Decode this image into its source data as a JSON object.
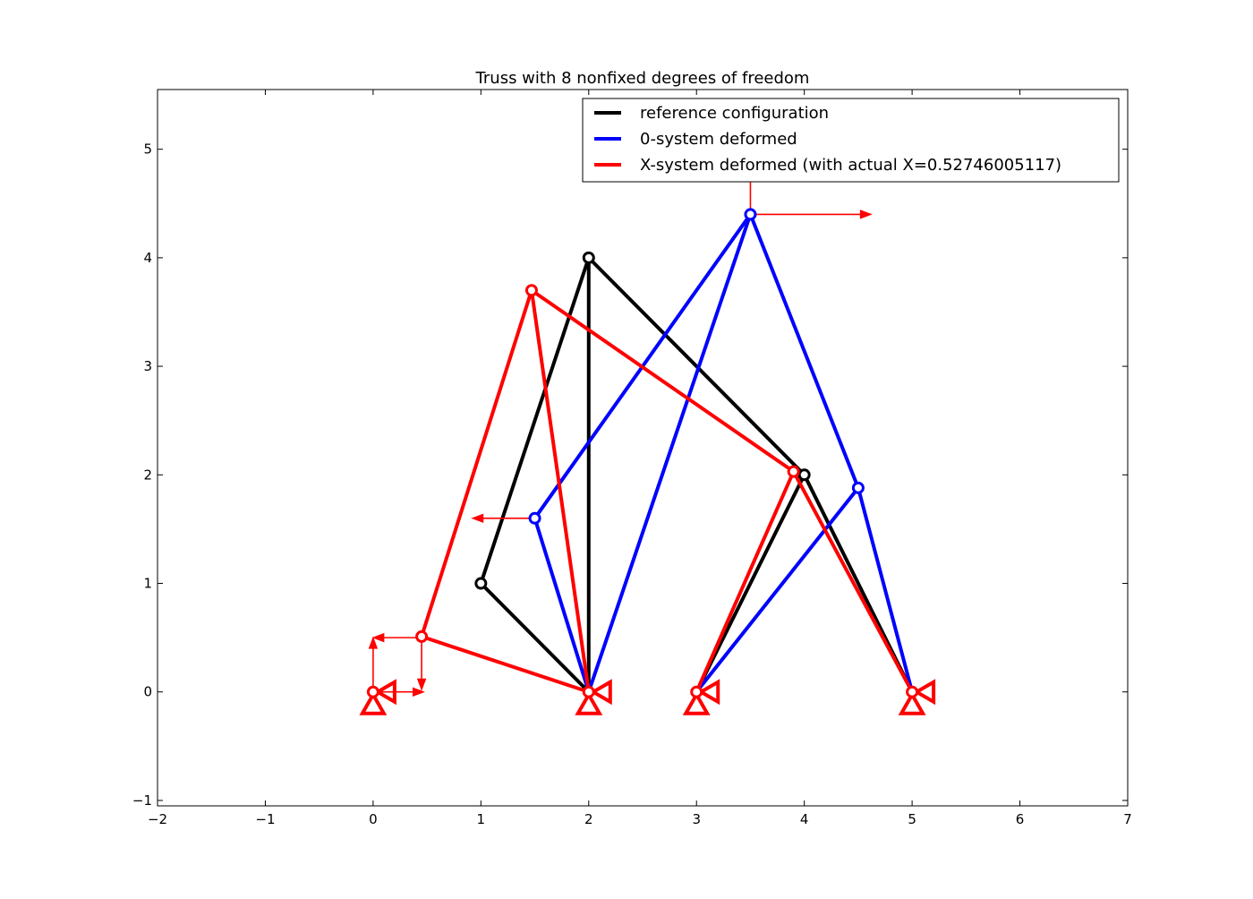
{
  "chart_data": {
    "type": "line",
    "title": "Truss with 8 nonfixed degrees of freedom",
    "xlabel": "",
    "ylabel": "",
    "xlim": [
      -2,
      7
    ],
    "ylim": [
      -1.05,
      5.55
    ],
    "xticks": [
      -2,
      -1,
      0,
      1,
      2,
      3,
      4,
      5,
      6,
      7
    ],
    "xtick_labels": [
      "−2",
      "−1",
      "0",
      "1",
      "2",
      "3",
      "4",
      "5",
      "6",
      "7"
    ],
    "yticks": [
      -1,
      0,
      1,
      2,
      3,
      4,
      5
    ],
    "ytick_labels": [
      "−1",
      "0",
      "1",
      "2",
      "3",
      "4",
      "5"
    ],
    "grid": false,
    "legend_position": "top-right",
    "series": [
      {
        "name": "reference configuration",
        "color": "#000000",
        "segments": [
          [
            [
              2,
              0
            ],
            [
              1,
              1
            ]
          ],
          [
            [
              1,
              1
            ],
            [
              2,
              4
            ]
          ],
          [
            [
              2,
              0
            ],
            [
              2,
              4
            ]
          ],
          [
            [
              2,
              4
            ],
            [
              4,
              2
            ]
          ],
          [
            [
              3,
              0
            ],
            [
              4,
              2
            ]
          ],
          [
            [
              4,
              2
            ],
            [
              5,
              0
            ]
          ]
        ],
        "nodes": [
          [
            1,
            1
          ],
          [
            2,
            4
          ],
          [
            4,
            2
          ]
        ]
      },
      {
        "name": "0-system deformed",
        "color": "#0000ff",
        "segments": [
          [
            [
              2,
              0
            ],
            [
              1.5,
              1.6
            ]
          ],
          [
            [
              1.5,
              1.6
            ],
            [
              3.5,
              4.4
            ]
          ],
          [
            [
              2,
              0
            ],
            [
              3.5,
              4.4
            ]
          ],
          [
            [
              3.5,
              4.4
            ],
            [
              4.5,
              1.88
            ]
          ],
          [
            [
              3,
              0
            ],
            [
              4.5,
              1.88
            ]
          ],
          [
            [
              4.5,
              1.88
            ],
            [
              5,
              0
            ]
          ]
        ],
        "nodes": [
          [
            1.5,
            1.6
          ],
          [
            3.5,
            4.4
          ],
          [
            4.5,
            1.88
          ]
        ]
      },
      {
        "name": "X-system deformed (with actual X=0.52746005117)",
        "color": "#ff0000",
        "segments": [
          [
            [
              0.45,
              0.51
            ],
            [
              2,
              0
            ]
          ],
          [
            [
              0.45,
              0.51
            ],
            [
              1.47,
              3.7
            ]
          ],
          [
            [
              1.47,
              3.7
            ],
            [
              2,
              0
            ]
          ],
          [
            [
              1.47,
              3.7
            ],
            [
              3.9,
              2.03
            ]
          ],
          [
            [
              3,
              0
            ],
            [
              3.9,
              2.03
            ]
          ],
          [
            [
              3.9,
              2.03
            ],
            [
              5,
              0
            ]
          ]
        ],
        "nodes": [
          [
            0,
            0
          ],
          [
            0.45,
            0.51
          ],
          [
            1.47,
            3.7
          ],
          [
            2,
            0
          ],
          [
            3,
            0
          ],
          [
            3.9,
            2.03
          ],
          [
            5,
            0
          ]
        ]
      }
    ],
    "supports": [
      {
        "x": 0,
        "y": 0,
        "types": [
          "pin",
          "roller"
        ]
      },
      {
        "x": 2,
        "y": 0,
        "types": [
          "pin",
          "roller"
        ]
      },
      {
        "x": 3,
        "y": 0,
        "types": [
          "pin",
          "roller"
        ]
      },
      {
        "x": 5,
        "y": 0,
        "types": [
          "pin",
          "roller"
        ]
      }
    ],
    "force_arrows": [
      {
        "from": [
          0,
          0
        ],
        "to": [
          0,
          0.5
        ],
        "color": "#ff0000"
      },
      {
        "from": [
          0,
          0
        ],
        "to": [
          0.47,
          0
        ],
        "color": "#ff0000"
      },
      {
        "from": [
          0.45,
          0.5
        ],
        "to": [
          0,
          0.5
        ],
        "color": "#ff0000"
      },
      {
        "from": [
          0.45,
          0.5
        ],
        "to": [
          0.45,
          0.02
        ],
        "color": "#ff0000"
      },
      {
        "from": [
          1.5,
          1.6
        ],
        "to": [
          0.92,
          1.6
        ],
        "color": "#ff0000"
      },
      {
        "from": [
          3.5,
          4.4
        ],
        "to": [
          4.62,
          4.4
        ],
        "color": "#ff0000"
      },
      {
        "from": [
          3.5,
          4.4
        ],
        "to": [
          3.5,
          5.05
        ],
        "color": "#ff0000"
      }
    ]
  }
}
